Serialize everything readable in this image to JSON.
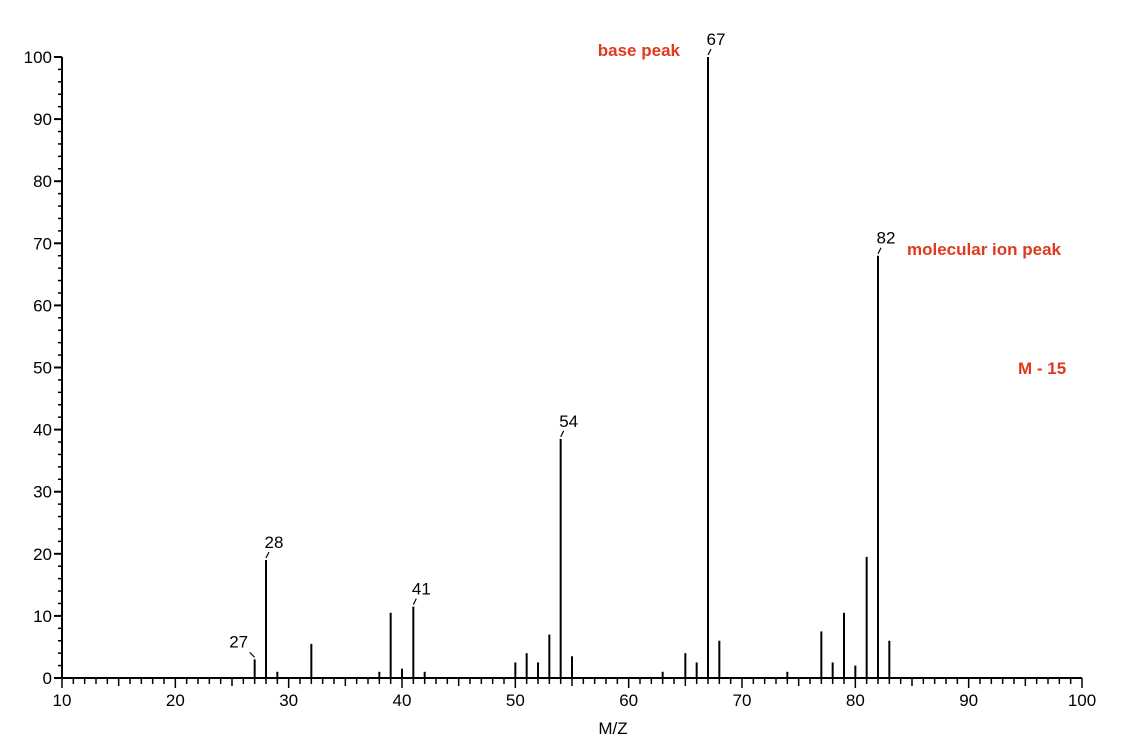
{
  "chart_data": {
    "type": "bar",
    "xlabel": "M/Z",
    "ylabel": "",
    "xlim": [
      10,
      100
    ],
    "ylim": [
      0,
      100
    ],
    "x_ticks": [
      10,
      20,
      30,
      40,
      50,
      60,
      70,
      80,
      90,
      100
    ],
    "y_ticks": [
      0,
      10,
      20,
      30,
      40,
      50,
      60,
      70,
      80,
      90,
      100
    ],
    "peaks": [
      {
        "mz": 27,
        "intensity": 3
      },
      {
        "mz": 28,
        "intensity": 19
      },
      {
        "mz": 29,
        "intensity": 1
      },
      {
        "mz": 32,
        "intensity": 5.5
      },
      {
        "mz": 38,
        "intensity": 1
      },
      {
        "mz": 39,
        "intensity": 10.5
      },
      {
        "mz": 40,
        "intensity": 1.5
      },
      {
        "mz": 41,
        "intensity": 11.5
      },
      {
        "mz": 42,
        "intensity": 1
      },
      {
        "mz": 50,
        "intensity": 2.5
      },
      {
        "mz": 51,
        "intensity": 4
      },
      {
        "mz": 52,
        "intensity": 2.5
      },
      {
        "mz": 53,
        "intensity": 7
      },
      {
        "mz": 54,
        "intensity": 38.5
      },
      {
        "mz": 55,
        "intensity": 3.5
      },
      {
        "mz": 63,
        "intensity": 1
      },
      {
        "mz": 65,
        "intensity": 4
      },
      {
        "mz": 66,
        "intensity": 2.5
      },
      {
        "mz": 67,
        "intensity": 100
      },
      {
        "mz": 68,
        "intensity": 6
      },
      {
        "mz": 74,
        "intensity": 1
      },
      {
        "mz": 77,
        "intensity": 7.5
      },
      {
        "mz": 78,
        "intensity": 2.5
      },
      {
        "mz": 79,
        "intensity": 10.5
      },
      {
        "mz": 80,
        "intensity": 2
      },
      {
        "mz": 81,
        "intensity": 19.5
      },
      {
        "mz": 82,
        "intensity": 68
      },
      {
        "mz": 83,
        "intensity": 6
      }
    ],
    "peak_labels": [
      "27",
      "28",
      "41",
      "54",
      "67",
      "82"
    ],
    "annotations": {
      "base_peak": "base peak",
      "molecular_ion": "molecular ion peak",
      "m_minus_15": "M - 15"
    },
    "colors": {
      "annotation": "#e03a1e",
      "axis": "#000000",
      "bars": "#000000"
    }
  }
}
